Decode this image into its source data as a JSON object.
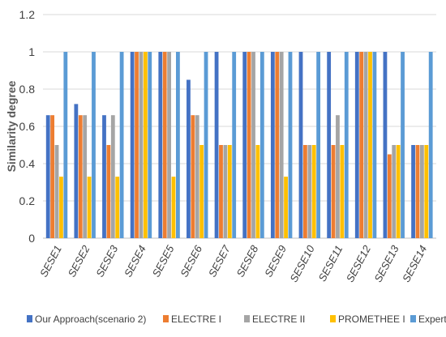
{
  "chart_data": {
    "type": "bar",
    "title": "",
    "xlabel": "",
    "ylabel": "Similarity degree",
    "ylim": [
      0,
      1.2
    ],
    "yticks": [
      "0",
      "0.2",
      "0.4",
      "0.6",
      "0.8",
      "1",
      "1.2"
    ],
    "grid": true,
    "legend_position": "bottom",
    "categories": [
      "SESE1",
      "SESE2",
      "SESE3",
      "SESE4",
      "SESE5",
      "SESE6",
      "SESE7",
      "SESE8",
      "SESE9",
      "SESE10",
      "SESE11",
      "SESE12",
      "SESE13",
      "SESE14"
    ],
    "series": [
      {
        "name": "Our Approach(scenario 2)",
        "color": "#4472c4",
        "values": [
          0.66,
          0.72,
          0.66,
          1,
          1,
          0.85,
          1,
          1,
          1,
          1,
          1,
          1,
          1,
          0.5
        ]
      },
      {
        "name": "ELECTRE I",
        "color": "#ed7d31",
        "values": [
          0.66,
          0.66,
          0.5,
          1,
          1,
          0.66,
          0.5,
          1,
          1,
          0.5,
          0.5,
          1,
          0.45,
          0.5
        ]
      },
      {
        "name": "ELECTRE II",
        "color": "#a5a5a5",
        "values": [
          0.5,
          0.66,
          0.66,
          1,
          1,
          0.66,
          0.5,
          1,
          1,
          0.5,
          0.66,
          1,
          0.5,
          0.5
        ]
      },
      {
        "name": "PROMETHEE I",
        "color": "#ffc000",
        "values": [
          0.33,
          0.33,
          0.33,
          1,
          0.33,
          0.5,
          0.5,
          0.5,
          0.33,
          0.5,
          0.5,
          1,
          0.5,
          0.5
        ]
      },
      {
        "name": "Expert",
        "color": "#5b9bd5",
        "values": [
          1,
          1,
          1,
          1,
          1,
          1,
          1,
          1,
          1,
          1,
          1,
          1,
          1,
          1
        ]
      }
    ]
  }
}
